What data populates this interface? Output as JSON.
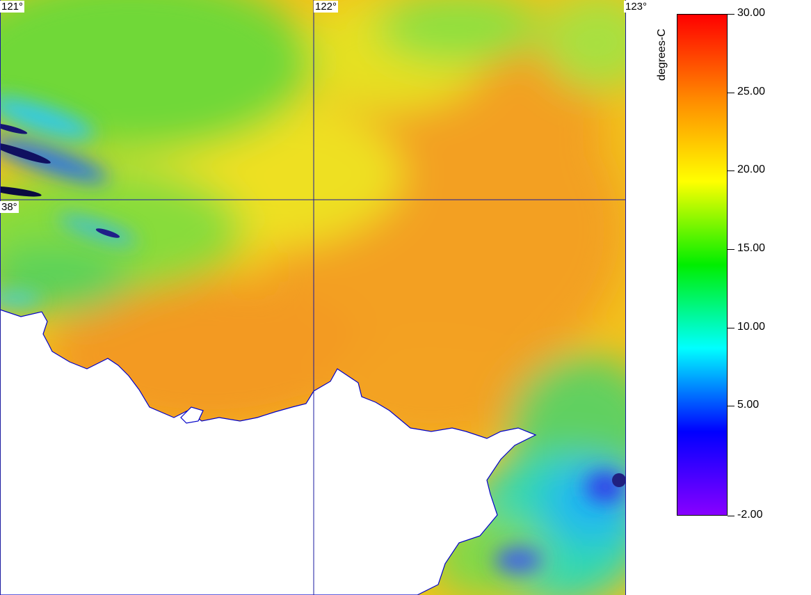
{
  "map": {
    "longitude_labels": [
      "121°",
      "122°",
      "123°"
    ],
    "latitude_labels": [
      "38°"
    ],
    "colors": {
      "grid": "#1a1aa0",
      "coastline": "#0000c8",
      "land": "#ffffff"
    }
  },
  "colorbar": {
    "title": "degrees-C",
    "min": -2.0,
    "max": 30.0,
    "tick_labels": [
      "30.00",
      "25.00",
      "20.00",
      "15.00",
      "10.00",
      "5.00",
      "-2.00"
    ],
    "tick_values": [
      30,
      25,
      20,
      15,
      10,
      5,
      -2
    ],
    "gradient": [
      "#ff0000",
      "#ff8800",
      "#ffff00",
      "#00ee00",
      "#00ffff",
      "#0000ff",
      "#8800ff"
    ]
  }
}
